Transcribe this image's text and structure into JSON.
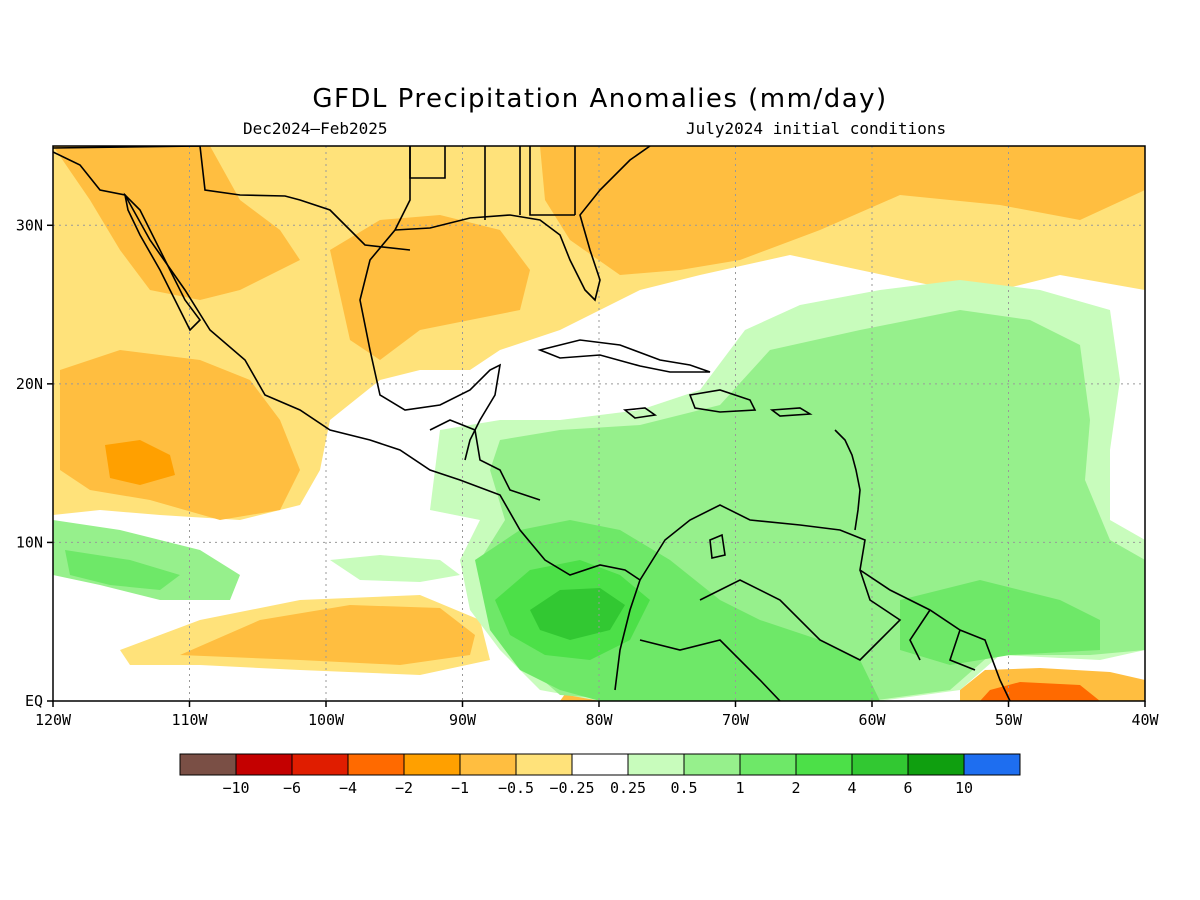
{
  "title": "GFDL Precipitation Anomalies (mm/day)",
  "subtitle_left": "Dec2024–Feb2025",
  "subtitle_right": "July2024 initial conditions",
  "map": {
    "lon_range": [
      -120,
      -40
    ],
    "lat_range": [
      0,
      35
    ],
    "lon_ticks": [
      {
        "value": -120,
        "label": "120W"
      },
      {
        "value": -110,
        "label": "110W"
      },
      {
        "value": -100,
        "label": "100W"
      },
      {
        "value": -90,
        "label": "90W"
      },
      {
        "value": -80,
        "label": "80W"
      },
      {
        "value": -70,
        "label": "70W"
      },
      {
        "value": -60,
        "label": "60W"
      },
      {
        "value": -50,
        "label": "50W"
      },
      {
        "value": -40,
        "label": "40W"
      }
    ],
    "lat_ticks": [
      {
        "value": 0,
        "label": "EQ"
      },
      {
        "value": 10,
        "label": "10N"
      },
      {
        "value": 20,
        "label": "20N"
      },
      {
        "value": 30,
        "label": "30N"
      }
    ],
    "gridlines": "dotted"
  },
  "legend": {
    "colors": [
      "#7a4f45",
      "#c40000",
      "#e01d00",
      "#ff6a00",
      "#ffa000",
      "#ffbe40",
      "#ffe27a",
      "#ffffff",
      "#c8fcbc",
      "#96f08c",
      "#6ee868",
      "#4ce048",
      "#32c832",
      "#0f9f0f",
      "#1e6ef0"
    ],
    "labels": [
      "−10",
      "−6",
      "−4",
      "−2",
      "−1",
      "−0.5",
      "−0.25",
      "0.25",
      "0.5",
      "1",
      "2",
      "4",
      "6",
      "10"
    ]
  },
  "palette": {
    "dry_025": "#ffe27a",
    "dry_05": "#ffbe40",
    "dry_1": "#ffa000",
    "dry_2": "#ff6a00",
    "wet_025": "#c8fcbc",
    "wet_05": "#96f08c",
    "wet_1": "#6ee868",
    "wet_2": "#4ce048",
    "wet_4": "#32c832"
  }
}
